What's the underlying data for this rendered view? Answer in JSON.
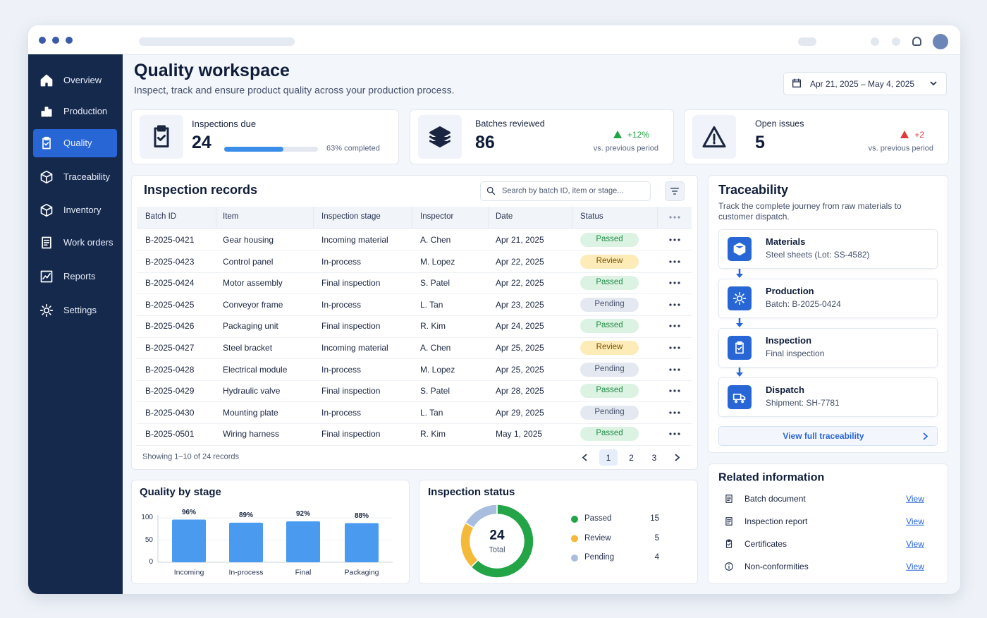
{
  "sidebar": {
    "items": [
      "Overview",
      "Production",
      "Quality",
      "Traceability",
      "Inventory",
      "Work orders",
      "Reports",
      "Settings"
    ],
    "active": 2
  },
  "header": {
    "title": "Quality workspace",
    "subtitle": "Inspect, track and ensure product quality across your production process.",
    "date_range": "Apr 21, 2025 – May 4, 2025"
  },
  "kpis": [
    {
      "label": "Inspections due",
      "value": 24,
      "progress": 63,
      "progress_label": "63% completed"
    },
    {
      "label": "Batches reviewed",
      "value": 86,
      "change": "+12%",
      "trend_color": "#22a447",
      "note": "vs. previous period"
    },
    {
      "label": "Open issues",
      "value": 5,
      "change": "+2",
      "trend_color": "#e0393e",
      "note": "vs. previous period"
    }
  ],
  "inspection_records": {
    "title": "Inspection records",
    "search_placeholder": "Search by batch ID, item or stage...",
    "columns": [
      "Batch ID",
      "Item",
      "Inspection stage",
      "Inspector",
      "Date",
      "Status"
    ],
    "rows": [
      [
        "B-2025-0421",
        "Gear housing",
        "Incoming material",
        "A. Chen",
        "Apr 21, 2025",
        "Passed"
      ],
      [
        "B-2025-0423",
        "Control panel",
        "In-process",
        "M. Lopez",
        "Apr 22, 2025",
        "Review"
      ],
      [
        "B-2025-0424",
        "Motor assembly",
        "Final inspection",
        "S. Patel",
        "Apr 22, 2025",
        "Passed"
      ],
      [
        "B-2025-0425",
        "Conveyor frame",
        "In-process",
        "L. Tan",
        "Apr 23, 2025",
        "Pending"
      ],
      [
        "B-2025-0426",
        "Packaging unit",
        "Final inspection",
        "R. Kim",
        "Apr 24, 2025",
        "Passed"
      ],
      [
        "B-2025-0427",
        "Steel bracket",
        "Incoming material",
        "A. Chen",
        "Apr 25, 2025",
        "Review"
      ],
      [
        "B-2025-0428",
        "Electrical module",
        "In-process",
        "M. Lopez",
        "Apr 25, 2025",
        "Pending"
      ],
      [
        "B-2025-0429",
        "Hydraulic valve",
        "Final inspection",
        "S. Patel",
        "Apr 28, 2025",
        "Passed"
      ],
      [
        "B-2025-0430",
        "Mounting plate",
        "In-process",
        "L. Tan",
        "Apr 29, 2025",
        "Pending"
      ],
      [
        "B-2025-0501",
        "Wiring harness",
        "Final inspection",
        "R. Kim",
        "May 1, 2025",
        "Passed"
      ]
    ],
    "footer": "Showing 1–10 of 24 records",
    "pages": [
      1,
      2,
      3
    ],
    "current_page": 1
  },
  "chart_data": [
    {
      "type": "bar",
      "title": "Quality by stage",
      "categories": [
        "Incoming",
        "In-process",
        "Final",
        "Packaging"
      ],
      "values": [
        96,
        89,
        92,
        88
      ],
      "value_labels": [
        "96%",
        "89%",
        "92%",
        "88%"
      ],
      "color": "#4a9af0",
      "ylim": [
        0,
        100
      ],
      "yticks": [
        0,
        50,
        100
      ],
      "grid": true
    },
    {
      "type": "donut",
      "title": "Inspection status",
      "categories": [
        "Passed",
        "Review",
        "Pending"
      ],
      "values": [
        15,
        5,
        4
      ],
      "colors": [
        "#22a447",
        "#f5b93a",
        "#a9bede"
      ],
      "center_value": 24,
      "center_label": "Total"
    }
  ],
  "traceability": {
    "title": "Traceability",
    "description": "Track the complete journey from raw materials to customer dispatch.",
    "steps": [
      {
        "name": "Materials",
        "detail": "Steel sheets (Lot: SS-4582)",
        "done": true
      },
      {
        "name": "Production",
        "detail": "Batch: B-2025-0424",
        "done": true
      },
      {
        "name": "Inspection",
        "detail": "Final inspection",
        "done": true
      },
      {
        "name": "Dispatch",
        "detail": "Shipment: SH-7781",
        "done": false
      }
    ],
    "link": "View full traceability"
  },
  "related": {
    "title": "Related information",
    "items": [
      {
        "label": "Batch document",
        "action": "View"
      },
      {
        "label": "Inspection report",
        "action": "View"
      },
      {
        "label": "Certificates",
        "action": "View"
      },
      {
        "label": "Non-conformities",
        "action": "View"
      }
    ]
  }
}
